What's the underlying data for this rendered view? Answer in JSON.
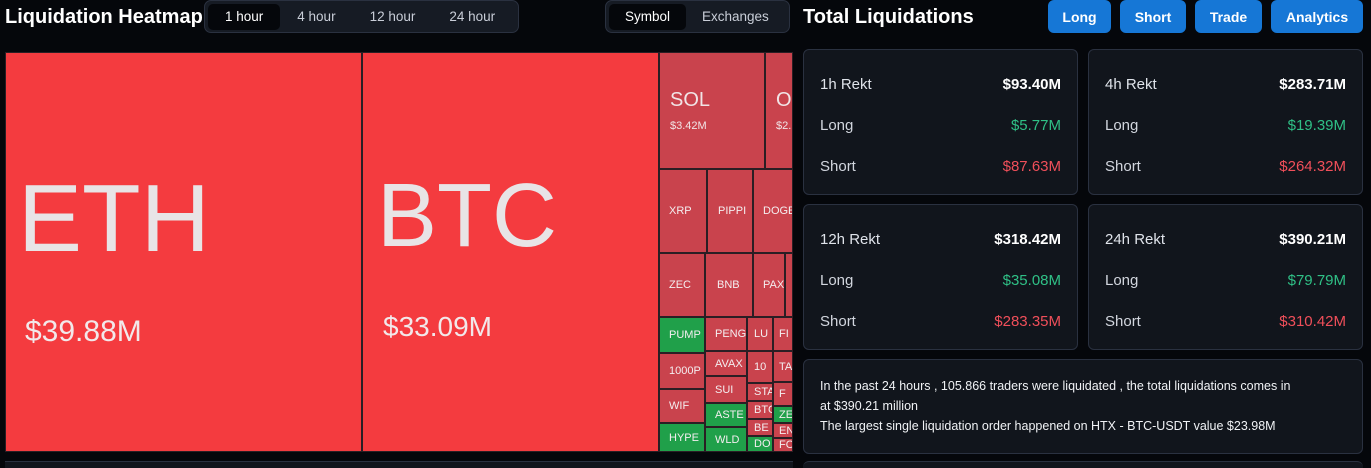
{
  "heatmap": {
    "title": "Liquidation Heatmap",
    "time_tabs": [
      "1 hour",
      "4 hour",
      "12 hour",
      "24 hour"
    ],
    "active_time_tab": "1 hour",
    "view_tabs": [
      "Symbol",
      "Exchanges"
    ],
    "active_view_tab": "Symbol",
    "tiles": {
      "eth": {
        "symbol": "ETH",
        "value": "$39.88M"
      },
      "btc": {
        "symbol": "BTC",
        "value": "$33.09M"
      },
      "sol": {
        "symbol": "SOL",
        "value": "$3.42M"
      },
      "other_partial": {
        "symbol": "O",
        "value": "$2."
      },
      "xrp": "XRP",
      "pippin": "PIPPI",
      "doge": "DOGE",
      "zec": "ZEC",
      "bnb": "BNB",
      "pax": "PAX",
      "pump": "PUMP",
      "peng": "PENG",
      "lu": "LU",
      "fi": "FI",
      "k1000p": "1000P",
      "avax": "AVAX",
      "ten": "10",
      "ta": "TA",
      "wif": "WIF",
      "sui": "SUI",
      "sta": "STA",
      "f": "F",
      "aste": "ASTE",
      "btc_small": "BTC",
      "be": "BE",
      "ze": "ZE",
      "en": "EN",
      "hype": "HYPE",
      "wld": "WLD",
      "do": "DO",
      "fo": "FO"
    },
    "colors": {
      "big_red": "#f43b3f",
      "red": "#c9434d",
      "green": "#20a04a"
    }
  },
  "totals": {
    "title": "Total Liquidations",
    "buttons": {
      "long": "Long",
      "short": "Short",
      "trade": "Trade",
      "analytics": "Analytics"
    },
    "cards": {
      "h1": {
        "title": "1h Rekt",
        "total": "$93.40M",
        "long_label": "Long",
        "long": "$5.77M",
        "short_label": "Short",
        "short": "$87.63M"
      },
      "h4": {
        "title": "4h Rekt",
        "total": "$283.71M",
        "long_label": "Long",
        "long": "$19.39M",
        "short_label": "Short",
        "short": "$264.32M"
      },
      "h12": {
        "title": "12h Rekt",
        "total": "$318.42M",
        "long_label": "Long",
        "long": "$35.08M",
        "short_label": "Short",
        "short": "$283.35M"
      },
      "h24": {
        "title": "24h Rekt",
        "total": "$390.21M",
        "long_label": "Long",
        "long": "$79.79M",
        "short_label": "Short",
        "short": "$310.42M"
      }
    },
    "summary": {
      "line1": "In the past 24 hours , 105.866 traders were liquidated , the total liquidations comes in",
      "line2": "at $390.21 million",
      "line3": "The largest single liquidation order happened on HTX - BTC-USDT value $23.98M"
    },
    "colors": {
      "long": "#2fc086",
      "short": "#f04f5a",
      "accent": "#1677d6"
    }
  }
}
